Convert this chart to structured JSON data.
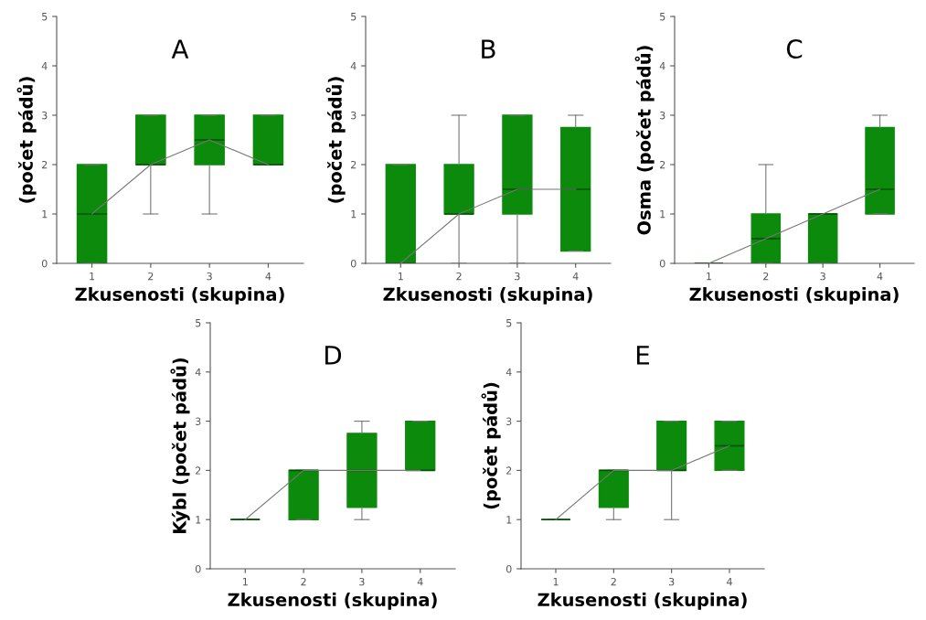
{
  "chart_data": [
    {
      "type": "box",
      "title": "A",
      "xlabel": "Zkusenosti (skupina)",
      "ylabel": "(počet pádů)",
      "categories": [
        "1",
        "2",
        "3",
        "4"
      ],
      "color": "#0b8a0b",
      "ylim": [
        0,
        5
      ],
      "yticks": [
        0,
        1,
        2,
        3,
        4,
        5
      ],
      "grid": false,
      "legend": false,
      "boxes": [
        {
          "low": 0,
          "q1": 0,
          "median": 1,
          "q3": 2,
          "high": 2
        },
        {
          "low": 1,
          "q1": 2,
          "median": 2,
          "q3": 3,
          "high": 3
        },
        {
          "low": 1,
          "q1": 2,
          "median": 2.5,
          "q3": 3,
          "high": 3
        },
        {
          "low": 2,
          "q1": 2,
          "median": 2,
          "q3": 3,
          "high": 3
        }
      ],
      "series": [
        {
          "type": "line",
          "color": "#777777",
          "values": [
            1,
            2,
            2.5,
            2
          ]
        }
      ]
    },
    {
      "type": "box",
      "title": "B",
      "xlabel": "Zkusenosti (skupina)",
      "ylabel": "(počet pádů)",
      "categories": [
        "1",
        "2",
        "3",
        "4"
      ],
      "color": "#0b8a0b",
      "ylim": [
        0,
        5
      ],
      "yticks": [
        0,
        1,
        2,
        3,
        4,
        5
      ],
      "grid": false,
      "legend": false,
      "boxes": [
        {
          "low": 0,
          "q1": 0,
          "median": 0,
          "q3": 2,
          "high": 2
        },
        {
          "low": 0,
          "q1": 1,
          "median": 1,
          "q3": 2,
          "high": 3
        },
        {
          "low": 0,
          "q1": 1,
          "median": 1.5,
          "q3": 3,
          "high": 3
        },
        {
          "low": 0.25,
          "q1": 0.25,
          "median": 1.5,
          "q3": 2.75,
          "high": 3
        }
      ],
      "series": [
        {
          "type": "line",
          "color": "#777777",
          "values": [
            0,
            1,
            1.5,
            1.5
          ]
        }
      ]
    },
    {
      "type": "box",
      "title": "C",
      "xlabel": "Zkusenosti (skupina)",
      "ylabel": "Osma (počet pádů)",
      "categories": [
        "1",
        "2",
        "3",
        "4"
      ],
      "color": "#0b8a0b",
      "ylim": [
        0,
        5
      ],
      "yticks": [
        0,
        1,
        2,
        3,
        4,
        5
      ],
      "grid": false,
      "legend": false,
      "boxes": [
        {
          "low": 0,
          "q1": 0,
          "median": 0,
          "q3": 0,
          "high": 0
        },
        {
          "low": 0,
          "q1": 0,
          "median": 0.5,
          "q3": 1,
          "high": 2
        },
        {
          "low": 0,
          "q1": 0,
          "median": 1,
          "q3": 1,
          "high": 1
        },
        {
          "low": 1,
          "q1": 1,
          "median": 1.5,
          "q3": 2.75,
          "high": 3
        }
      ],
      "series": [
        {
          "type": "line",
          "color": "#777777",
          "values": [
            0,
            0.5,
            1,
            1.5
          ]
        }
      ]
    },
    {
      "type": "box",
      "title": "D",
      "xlabel": "Zkusenosti (skupina)",
      "ylabel": "Kýbl (počet pádů)",
      "categories": [
        "1",
        "2",
        "3",
        "4"
      ],
      "color": "#0b8a0b",
      "ylim": [
        0,
        5
      ],
      "yticks": [
        0,
        1,
        2,
        3,
        4,
        5
      ],
      "grid": false,
      "legend": false,
      "boxes": [
        {
          "low": 1,
          "q1": 1,
          "median": 1,
          "q3": 1,
          "high": 1
        },
        {
          "low": 1,
          "q1": 1,
          "median": 2,
          "q3": 2,
          "high": 2
        },
        {
          "low": 1,
          "q1": 1.25,
          "median": 2,
          "q3": 2.75,
          "high": 3
        },
        {
          "low": 2,
          "q1": 2,
          "median": 2,
          "q3": 3,
          "high": 3
        }
      ],
      "series": [
        {
          "type": "line",
          "color": "#777777",
          "values": [
            1,
            2,
            2,
            2
          ]
        }
      ]
    },
    {
      "type": "box",
      "title": "E",
      "xlabel": "Zkusenosti (skupina)",
      "ylabel": "(počet pádů)",
      "categories": [
        "1",
        "2",
        "3",
        "4"
      ],
      "color": "#0b8a0b",
      "ylim": [
        0,
        5
      ],
      "yticks": [
        0,
        1,
        2,
        3,
        4,
        5
      ],
      "grid": false,
      "legend": false,
      "boxes": [
        {
          "low": 1,
          "q1": 1,
          "median": 1,
          "q3": 1,
          "high": 1
        },
        {
          "low": 1,
          "q1": 1.25,
          "median": 2,
          "q3": 2,
          "high": 2
        },
        {
          "low": 1,
          "q1": 2,
          "median": 2,
          "q3": 3,
          "high": 3
        },
        {
          "low": 2,
          "q1": 2,
          "median": 2.5,
          "q3": 3,
          "high": 3
        }
      ],
      "series": [
        {
          "type": "line",
          "color": "#777777",
          "values": [
            1,
            2,
            2,
            2.5
          ]
        }
      ]
    }
  ]
}
